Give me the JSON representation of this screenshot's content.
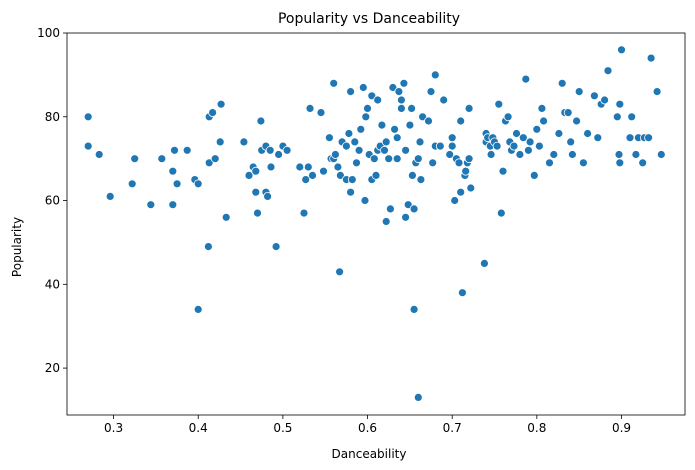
{
  "chart_data": {
    "type": "scatter",
    "title": "Popularity vs Danceability",
    "xlabel": "Danceability",
    "ylabel": "Popularity",
    "xlim": [
      0.245,
      0.975
    ],
    "ylim": [
      8.8,
      100
    ],
    "xticks": [
      0.3,
      0.4,
      0.5,
      0.6,
      0.7,
      0.8,
      0.9
    ],
    "yticks": [
      20,
      40,
      60,
      80,
      100
    ],
    "grid": false,
    "marker_color": "#1f77b4",
    "series": [
      {
        "points": [
          [
            0.27,
            80
          ],
          [
            0.27,
            73
          ],
          [
            0.283,
            71
          ],
          [
            0.296,
            61
          ],
          [
            0.322,
            64
          ],
          [
            0.325,
            70
          ],
          [
            0.344,
            59
          ],
          [
            0.357,
            70
          ],
          [
            0.37,
            59
          ],
          [
            0.37,
            67
          ],
          [
            0.372,
            72
          ],
          [
            0.375,
            64
          ],
          [
            0.387,
            72
          ],
          [
            0.396,
            65
          ],
          [
            0.4,
            34
          ],
          [
            0.4,
            64
          ],
          [
            0.412,
            49
          ],
          [
            0.413,
            69
          ],
          [
            0.413,
            80
          ],
          [
            0.417,
            81
          ],
          [
            0.42,
            70
          ],
          [
            0.426,
            74
          ],
          [
            0.427,
            83
          ],
          [
            0.433,
            56
          ],
          [
            0.454,
            74
          ],
          [
            0.46,
            66
          ],
          [
            0.465,
            68
          ],
          [
            0.468,
            67
          ],
          [
            0.468,
            62
          ],
          [
            0.47,
            57
          ],
          [
            0.474,
            79
          ],
          [
            0.475,
            72
          ],
          [
            0.48,
            62
          ],
          [
            0.48,
            73
          ],
          [
            0.482,
            61
          ],
          [
            0.485,
            72
          ],
          [
            0.486,
            68
          ],
          [
            0.492,
            49
          ],
          [
            0.495,
            71
          ],
          [
            0.5,
            73
          ],
          [
            0.505,
            72
          ],
          [
            0.52,
            68
          ],
          [
            0.525,
            57
          ],
          [
            0.527,
            65
          ],
          [
            0.53,
            68
          ],
          [
            0.532,
            82
          ],
          [
            0.535,
            66
          ],
          [
            0.545,
            81
          ],
          [
            0.548,
            67
          ],
          [
            0.555,
            75
          ],
          [
            0.557,
            70
          ],
          [
            0.56,
            70
          ],
          [
            0.56,
            88
          ],
          [
            0.562,
            71
          ],
          [
            0.565,
            68
          ],
          [
            0.567,
            43
          ],
          [
            0.568,
            66
          ],
          [
            0.57,
            74
          ],
          [
            0.575,
            73
          ],
          [
            0.575,
            65
          ],
          [
            0.578,
            76
          ],
          [
            0.58,
            86
          ],
          [
            0.58,
            62
          ],
          [
            0.582,
            65
          ],
          [
            0.585,
            74
          ],
          [
            0.587,
            69
          ],
          [
            0.59,
            72
          ],
          [
            0.592,
            77
          ],
          [
            0.595,
            87
          ],
          [
            0.597,
            60
          ],
          [
            0.598,
            80
          ],
          [
            0.6,
            82
          ],
          [
            0.602,
            71
          ],
          [
            0.605,
            65
          ],
          [
            0.605,
            85
          ],
          [
            0.608,
            70
          ],
          [
            0.61,
            66
          ],
          [
            0.612,
            72
          ],
          [
            0.612,
            84
          ],
          [
            0.615,
            73
          ],
          [
            0.617,
            78
          ],
          [
            0.62,
            72
          ],
          [
            0.622,
            55
          ],
          [
            0.622,
            74
          ],
          [
            0.625,
            70
          ],
          [
            0.627,
            58
          ],
          [
            0.63,
            87
          ],
          [
            0.632,
            77
          ],
          [
            0.635,
            75
          ],
          [
            0.635,
            70
          ],
          [
            0.637,
            86
          ],
          [
            0.64,
            82
          ],
          [
            0.64,
            84
          ],
          [
            0.643,
            88
          ],
          [
            0.645,
            56
          ],
          [
            0.645,
            72
          ],
          [
            0.648,
            59
          ],
          [
            0.65,
            78
          ],
          [
            0.652,
            82
          ],
          [
            0.653,
            66
          ],
          [
            0.655,
            58
          ],
          [
            0.655,
            34
          ],
          [
            0.657,
            69
          ],
          [
            0.66,
            70
          ],
          [
            0.66,
            13
          ],
          [
            0.662,
            74
          ],
          [
            0.663,
            65
          ],
          [
            0.665,
            80
          ],
          [
            0.672,
            79
          ],
          [
            0.675,
            86
          ],
          [
            0.677,
            69
          ],
          [
            0.68,
            73
          ],
          [
            0.68,
            90
          ],
          [
            0.686,
            73
          ],
          [
            0.69,
            84
          ],
          [
            0.697,
            71
          ],
          [
            0.7,
            75
          ],
          [
            0.7,
            73
          ],
          [
            0.703,
            60
          ],
          [
            0.705,
            70
          ],
          [
            0.708,
            69
          ],
          [
            0.71,
            62
          ],
          [
            0.71,
            79
          ],
          [
            0.712,
            38
          ],
          [
            0.715,
            66
          ],
          [
            0.716,
            67
          ],
          [
            0.718,
            69
          ],
          [
            0.72,
            82
          ],
          [
            0.72,
            70
          ],
          [
            0.722,
            63
          ],
          [
            0.738,
            45
          ],
          [
            0.74,
            76
          ],
          [
            0.74,
            74
          ],
          [
            0.742,
            75
          ],
          [
            0.745,
            73
          ],
          [
            0.746,
            71
          ],
          [
            0.748,
            75
          ],
          [
            0.75,
            74
          ],
          [
            0.753,
            73
          ],
          [
            0.755,
            83
          ],
          [
            0.758,
            57
          ],
          [
            0.76,
            67
          ],
          [
            0.763,
            79
          ],
          [
            0.766,
            80
          ],
          [
            0.768,
            74
          ],
          [
            0.77,
            72
          ],
          [
            0.773,
            73
          ],
          [
            0.776,
            76
          ],
          [
            0.78,
            71
          ],
          [
            0.784,
            75
          ],
          [
            0.787,
            89
          ],
          [
            0.79,
            72
          ],
          [
            0.792,
            74
          ],
          [
            0.797,
            66
          ],
          [
            0.8,
            77
          ],
          [
            0.803,
            73
          ],
          [
            0.806,
            82
          ],
          [
            0.808,
            79
          ],
          [
            0.815,
            69
          ],
          [
            0.82,
            71
          ],
          [
            0.826,
            76
          ],
          [
            0.83,
            88
          ],
          [
            0.833,
            81
          ],
          [
            0.837,
            81
          ],
          [
            0.84,
            74
          ],
          [
            0.842,
            71
          ],
          [
            0.847,
            79
          ],
          [
            0.85,
            86
          ],
          [
            0.855,
            69
          ],
          [
            0.86,
            76
          ],
          [
            0.868,
            85
          ],
          [
            0.872,
            75
          ],
          [
            0.876,
            83
          ],
          [
            0.88,
            84
          ],
          [
            0.884,
            91
          ],
          [
            0.895,
            80
          ],
          [
            0.897,
            71
          ],
          [
            0.898,
            69
          ],
          [
            0.898,
            83
          ],
          [
            0.9,
            96
          ],
          [
            0.91,
            75
          ],
          [
            0.912,
            80
          ],
          [
            0.917,
            71
          ],
          [
            0.92,
            75
          ],
          [
            0.925,
            69
          ],
          [
            0.927,
            75
          ],
          [
            0.932,
            75
          ],
          [
            0.935,
            94
          ],
          [
            0.942,
            86
          ],
          [
            0.947,
            71
          ]
        ]
      }
    ]
  }
}
